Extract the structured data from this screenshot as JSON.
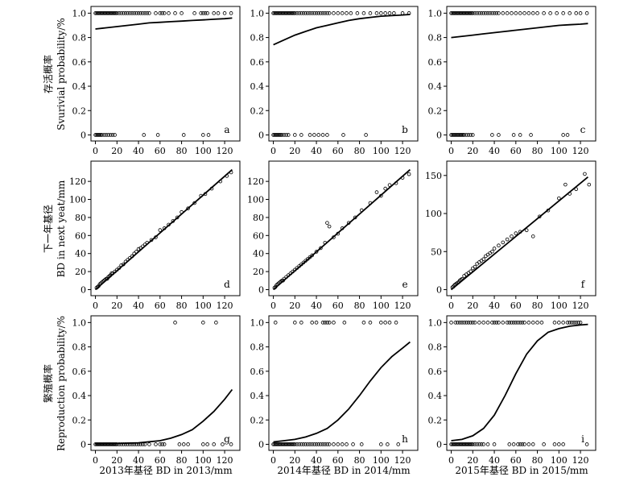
{
  "row_labels": [
    {
      "cn": "存活概率",
      "en": "Svurivial probability/%"
    },
    {
      "cn": "下一年基径",
      "en": "BD in next yeat/mm"
    },
    {
      "cn": "繁殖概率",
      "en": "Reproduction probability/%"
    }
  ],
  "col_labels": [
    "2013年基径 BD in 2013/mm",
    "2014年基径 BD in 2014/mm",
    "2015年基径 BD in 2015/mm"
  ],
  "chart_data": [
    {
      "panel": "a",
      "type": "scatter",
      "row": 0,
      "col": 0,
      "xlim": [
        0,
        130
      ],
      "ylim": [
        0,
        1
      ],
      "yticks": [
        0,
        0.2,
        0.4,
        0.6,
        0.8,
        1.0
      ],
      "ytick_labels": [
        "0",
        "0.2",
        "0.4",
        "0.6",
        "0.8",
        "1.0"
      ],
      "xticks": [
        0,
        20,
        40,
        60,
        80,
        100,
        120
      ],
      "points_y1_x": [
        0,
        1,
        2,
        3,
        4,
        5,
        6,
        7,
        8,
        9,
        10,
        11,
        12,
        13,
        14,
        15,
        16,
        17,
        18,
        19,
        20,
        22,
        24,
        26,
        28,
        30,
        32,
        34,
        36,
        38,
        40,
        42,
        44,
        46,
        48,
        50,
        56,
        60,
        62,
        64,
        68,
        74,
        80,
        92,
        98,
        100,
        102,
        104,
        110,
        114,
        120,
        126
      ],
      "points_y0_x": [
        0,
        1,
        2,
        3,
        4,
        5,
        6,
        8,
        10,
        12,
        14,
        16,
        18,
        45,
        58,
        82,
        100,
        105
      ],
      "curve": {
        "x": [
          0,
          10,
          20,
          30,
          40,
          50,
          60,
          70,
          80,
          90,
          100,
          110,
          120,
          127
        ],
        "y": [
          0.87,
          0.88,
          0.89,
          0.9,
          0.91,
          0.92,
          0.925,
          0.93,
          0.935,
          0.94,
          0.945,
          0.95,
          0.955,
          0.96
        ]
      }
    },
    {
      "panel": "b",
      "type": "scatter",
      "row": 0,
      "col": 1,
      "xlim": [
        0,
        130
      ],
      "ylim": [
        0,
        1
      ],
      "yticks": [
        0,
        0.2,
        0.4,
        0.6,
        0.8,
        1.0
      ],
      "ytick_labels": [
        "0",
        "0.2",
        "0.4",
        "0.6",
        "0.8",
        "1.0"
      ],
      "xticks": [
        0,
        20,
        40,
        60,
        80,
        100,
        120
      ],
      "points_y1_x": [
        0,
        1,
        2,
        3,
        4,
        5,
        6,
        7,
        8,
        9,
        10,
        11,
        12,
        13,
        14,
        15,
        16,
        17,
        18,
        19,
        20,
        22,
        24,
        26,
        28,
        30,
        32,
        34,
        36,
        38,
        40,
        42,
        44,
        46,
        48,
        50,
        52,
        56,
        60,
        64,
        68,
        72,
        78,
        84,
        90,
        96,
        100,
        104,
        108,
        112,
        120,
        126
      ],
      "points_y0_x": [
        0,
        1,
        2,
        3,
        4,
        5,
        6,
        7,
        8,
        10,
        12,
        14,
        20,
        26,
        34,
        38,
        42,
        46,
        50,
        65,
        86
      ],
      "curve": {
        "x": [
          0,
          10,
          20,
          30,
          40,
          50,
          60,
          70,
          80,
          90,
          100,
          110,
          120,
          127
        ],
        "y": [
          0.74,
          0.78,
          0.82,
          0.85,
          0.88,
          0.9,
          0.92,
          0.94,
          0.955,
          0.965,
          0.975,
          0.98,
          0.985,
          0.99
        ]
      }
    },
    {
      "panel": "c",
      "type": "scatter",
      "row": 0,
      "col": 2,
      "xlim": [
        0,
        130
      ],
      "ylim": [
        0,
        1
      ],
      "yticks": [
        0,
        0.2,
        0.4,
        0.6,
        0.8,
        1.0
      ],
      "ytick_labels": [
        "0",
        "0.2",
        "0.4",
        "0.6",
        "0.8",
        "1.0"
      ],
      "xticks": [
        0,
        20,
        40,
        60,
        80,
        100,
        120
      ],
      "points_y1_x": [
        0,
        1,
        2,
        3,
        4,
        5,
        6,
        7,
        8,
        9,
        10,
        11,
        12,
        13,
        14,
        15,
        16,
        17,
        18,
        19,
        20,
        22,
        24,
        26,
        28,
        30,
        32,
        34,
        36,
        38,
        40,
        42,
        44,
        48,
        52,
        56,
        60,
        64,
        68,
        72,
        76,
        80,
        86,
        92,
        98,
        104,
        110,
        116,
        120,
        126
      ],
      "points_y0_x": [
        0,
        1,
        2,
        3,
        4,
        5,
        6,
        7,
        8,
        9,
        10,
        11,
        12,
        14,
        16,
        18,
        20,
        38,
        44,
        58,
        64,
        74,
        104,
        108
      ],
      "curve": {
        "x": [
          0,
          10,
          20,
          30,
          40,
          50,
          60,
          70,
          80,
          90,
          100,
          110,
          120,
          127
        ],
        "y": [
          0.8,
          0.81,
          0.82,
          0.83,
          0.84,
          0.85,
          0.86,
          0.87,
          0.88,
          0.89,
          0.9,
          0.905,
          0.91,
          0.915
        ]
      }
    },
    {
      "panel": "d",
      "type": "scatter",
      "row": 1,
      "col": 0,
      "xlim": [
        0,
        130
      ],
      "ylim": [
        0,
        135
      ],
      "yticks": [
        0,
        20,
        40,
        60,
        80,
        100,
        120
      ],
      "ytick_labels": [
        "0",
        "20",
        "40",
        "60",
        "80",
        "100",
        "120"
      ],
      "xticks": [
        0,
        20,
        40,
        60,
        80,
        100,
        120
      ],
      "points": [
        [
          1,
          2
        ],
        [
          2,
          3
        ],
        [
          3,
          4
        ],
        [
          4,
          6
        ],
        [
          5,
          7
        ],
        [
          6,
          8
        ],
        [
          7,
          9
        ],
        [
          8,
          10
        ],
        [
          9,
          11
        ],
        [
          10,
          12
        ],
        [
          11,
          12
        ],
        [
          12,
          14
        ],
        [
          13,
          15
        ],
        [
          14,
          16
        ],
        [
          15,
          18
        ],
        [
          16,
          18
        ],
        [
          18,
          20
        ],
        [
          20,
          22
        ],
        [
          22,
          24
        ],
        [
          24,
          27
        ],
        [
          26,
          28
        ],
        [
          28,
          31
        ],
        [
          30,
          33
        ],
        [
          32,
          35
        ],
        [
          34,
          37
        ],
        [
          36,
          40
        ],
        [
          38,
          42
        ],
        [
          40,
          45
        ],
        [
          42,
          46
        ],
        [
          44,
          48
        ],
        [
          46,
          50
        ],
        [
          48,
          52
        ],
        [
          52,
          55
        ],
        [
          56,
          58
        ],
        [
          60,
          66
        ],
        [
          64,
          68
        ],
        [
          68,
          72
        ],
        [
          72,
          76
        ],
        [
          76,
          80
        ],
        [
          80,
          86
        ],
        [
          86,
          90
        ],
        [
          92,
          96
        ],
        [
          98,
          104
        ],
        [
          102,
          106
        ],
        [
          108,
          112
        ],
        [
          116,
          120
        ],
        [
          122,
          126
        ],
        [
          126,
          130
        ]
      ],
      "line": {
        "x": [
          0,
          127
        ],
        "y": [
          0,
          133
        ]
      }
    },
    {
      "panel": "e",
      "type": "scatter",
      "row": 1,
      "col": 1,
      "xlim": [
        0,
        130
      ],
      "ylim": [
        0,
        135
      ],
      "yticks": [
        0,
        20,
        40,
        60,
        80,
        100,
        120
      ],
      "ytick_labels": [
        "0",
        "20",
        "40",
        "60",
        "80",
        "100",
        "120"
      ],
      "xticks": [
        0,
        20,
        40,
        60,
        80,
        100,
        120
      ],
      "points": [
        [
          1,
          2
        ],
        [
          2,
          3
        ],
        [
          3,
          5
        ],
        [
          4,
          6
        ],
        [
          5,
          7
        ],
        [
          6,
          8
        ],
        [
          7,
          9
        ],
        [
          8,
          10
        ],
        [
          9,
          10
        ],
        [
          10,
          12
        ],
        [
          12,
          14
        ],
        [
          14,
          16
        ],
        [
          16,
          18
        ],
        [
          18,
          20
        ],
        [
          20,
          22
        ],
        [
          22,
          24
        ],
        [
          24,
          26
        ],
        [
          26,
          28
        ],
        [
          28,
          30
        ],
        [
          30,
          32
        ],
        [
          32,
          34
        ],
        [
          34,
          36
        ],
        [
          36,
          38
        ],
        [
          40,
          42
        ],
        [
          44,
          46
        ],
        [
          48,
          52
        ],
        [
          50,
          74
        ],
        [
          52,
          70
        ],
        [
          56,
          58
        ],
        [
          60,
          62
        ],
        [
          64,
          68
        ],
        [
          70,
          74
        ],
        [
          76,
          80
        ],
        [
          82,
          88
        ],
        [
          90,
          96
        ],
        [
          96,
          108
        ],
        [
          100,
          104
        ],
        [
          104,
          112
        ],
        [
          108,
          116
        ],
        [
          114,
          118
        ],
        [
          120,
          124
        ],
        [
          126,
          128
        ]
      ],
      "line": {
        "x": [
          0,
          127
        ],
        "y": [
          0,
          133
        ]
      }
    },
    {
      "panel": "f",
      "type": "scatter",
      "row": 1,
      "col": 2,
      "xlim": [
        0,
        130
      ],
      "ylim": [
        0,
        160
      ],
      "yticks": [
        0,
        50,
        100,
        150
      ],
      "ytick_labels": [
        "0",
        "50",
        "100",
        "150"
      ],
      "xticks": [
        0,
        20,
        40,
        60,
        80,
        100,
        120
      ],
      "points": [
        [
          1,
          3
        ],
        [
          2,
          4
        ],
        [
          3,
          6
        ],
        [
          4,
          7
        ],
        [
          5,
          8
        ],
        [
          6,
          9
        ],
        [
          7,
          10
        ],
        [
          8,
          12
        ],
        [
          9,
          13
        ],
        [
          10,
          14
        ],
        [
          12,
          18
        ],
        [
          14,
          20
        ],
        [
          16,
          22
        ],
        [
          18,
          24
        ],
        [
          20,
          28
        ],
        [
          22,
          30
        ],
        [
          24,
          34
        ],
        [
          26,
          36
        ],
        [
          28,
          38
        ],
        [
          30,
          40
        ],
        [
          32,
          44
        ],
        [
          34,
          46
        ],
        [
          36,
          48
        ],
        [
          38,
          50
        ],
        [
          40,
          54
        ],
        [
          44,
          58
        ],
        [
          48,
          62
        ],
        [
          52,
          66
        ],
        [
          56,
          70
        ],
        [
          60,
          74
        ],
        [
          64,
          76
        ],
        [
          70,
          78
        ],
        [
          76,
          70
        ],
        [
          82,
          96
        ],
        [
          90,
          104
        ],
        [
          100,
          120
        ],
        [
          106,
          138
        ],
        [
          110,
          126
        ],
        [
          116,
          132
        ],
        [
          124,
          152
        ],
        [
          128,
          138
        ]
      ],
      "line": {
        "x": [
          0,
          127
        ],
        "y": [
          0,
          148
        ]
      }
    },
    {
      "panel": "g",
      "type": "scatter",
      "row": 2,
      "col": 0,
      "xlim": [
        0,
        130
      ],
      "ylim": [
        0,
        1
      ],
      "yticks": [
        0,
        0.2,
        0.4,
        0.6,
        0.8,
        1.0
      ],
      "ytick_labels": [
        "0",
        "0.2",
        "0.4",
        "0.6",
        "0.8",
        "1.0"
      ],
      "xticks": [
        0,
        20,
        40,
        60,
        80,
        100,
        120
      ],
      "points_y1_x": [
        74,
        100,
        112
      ],
      "points_y0_x": [
        0,
        1,
        2,
        3,
        4,
        5,
        6,
        7,
        8,
        9,
        10,
        11,
        12,
        13,
        14,
        15,
        16,
        17,
        18,
        19,
        20,
        22,
        24,
        26,
        28,
        30,
        32,
        34,
        36,
        38,
        40,
        42,
        44,
        46,
        50,
        56,
        60,
        62,
        64,
        78,
        82,
        86,
        100,
        104,
        110,
        118,
        126
      ],
      "curve": {
        "x": [
          0,
          20,
          40,
          60,
          70,
          80,
          90,
          100,
          110,
          120,
          127
        ],
        "y": [
          0.005,
          0.007,
          0.012,
          0.03,
          0.05,
          0.08,
          0.12,
          0.19,
          0.27,
          0.37,
          0.45
        ]
      }
    },
    {
      "panel": "h",
      "type": "scatter",
      "row": 2,
      "col": 1,
      "xlim": [
        0,
        130
      ],
      "ylim": [
        0,
        1
      ],
      "yticks": [
        0,
        0.2,
        0.4,
        0.6,
        0.8,
        1.0
      ],
      "ytick_labels": [
        "0",
        "0.2",
        "0.4",
        "0.6",
        "0.8",
        "1.0"
      ],
      "xticks": [
        0,
        20,
        40,
        60,
        80,
        100,
        120
      ],
      "points_y1_x": [
        2,
        20,
        26,
        36,
        40,
        46,
        48,
        50,
        52,
        56,
        66,
        84,
        90,
        100,
        104,
        108,
        114
      ],
      "points_y0_x": [
        0,
        1,
        2,
        3,
        4,
        5,
        6,
        7,
        8,
        9,
        10,
        11,
        12,
        13,
        14,
        15,
        16,
        17,
        18,
        19,
        20,
        22,
        24,
        26,
        28,
        30,
        32,
        34,
        36,
        38,
        40,
        42,
        44,
        46,
        48,
        50,
        52,
        56,
        60,
        64,
        68,
        74,
        82,
        100,
        106,
        116
      ],
      "curve": {
        "x": [
          0,
          10,
          20,
          30,
          40,
          50,
          60,
          70,
          80,
          90,
          100,
          110,
          120,
          127
        ],
        "y": [
          0.02,
          0.03,
          0.04,
          0.06,
          0.09,
          0.13,
          0.2,
          0.29,
          0.4,
          0.52,
          0.63,
          0.72,
          0.79,
          0.84
        ]
      }
    },
    {
      "panel": "i",
      "type": "scatter",
      "row": 2,
      "col": 2,
      "xlim": [
        0,
        130
      ],
      "ylim": [
        0,
        1
      ],
      "yticks": [
        0,
        0.2,
        0.4,
        0.6,
        0.8,
        1.0
      ],
      "ytick_labels": [
        "0",
        "0.2",
        "0.4",
        "0.6",
        "0.8",
        "1.0"
      ],
      "xticks": [
        0,
        20,
        40,
        60,
        80,
        100,
        120
      ],
      "points_y1_x": [
        0,
        4,
        6,
        8,
        10,
        12,
        14,
        16,
        18,
        20,
        22,
        26,
        30,
        34,
        38,
        40,
        42,
        44,
        48,
        52,
        54,
        56,
        58,
        60,
        62,
        64,
        66,
        68,
        72,
        76,
        80,
        84,
        96,
        100,
        104,
        108,
        110,
        112,
        114,
        116,
        118,
        120
      ],
      "points_y0_x": [
        0,
        1,
        2,
        3,
        4,
        5,
        6,
        7,
        8,
        9,
        10,
        11,
        12,
        13,
        14,
        15,
        16,
        17,
        18,
        19,
        20,
        22,
        24,
        26,
        28,
        30,
        34,
        40,
        54,
        58,
        62,
        64,
        66,
        68,
        72,
        76,
        86,
        96,
        100,
        104,
        126
      ],
      "curve": {
        "x": [
          0,
          10,
          20,
          30,
          40,
          50,
          60,
          70,
          80,
          90,
          100,
          110,
          120,
          127
        ],
        "y": [
          0.03,
          0.04,
          0.07,
          0.13,
          0.24,
          0.4,
          0.58,
          0.74,
          0.85,
          0.92,
          0.95,
          0.97,
          0.98,
          0.985
        ]
      }
    }
  ]
}
